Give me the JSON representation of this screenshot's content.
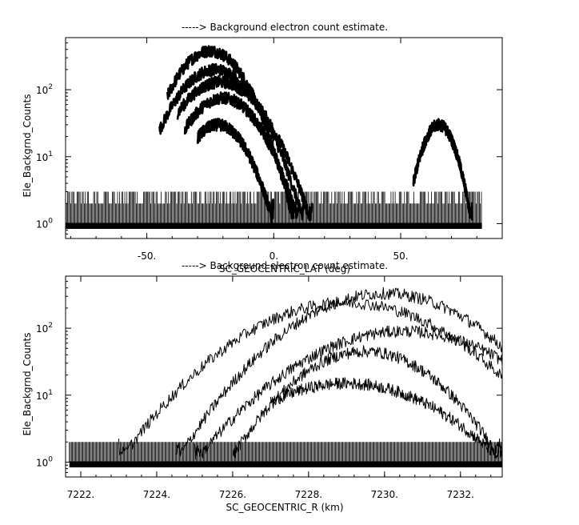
{
  "chart_data": [
    {
      "type": "line",
      "title": "-----> Background electron count estimate.",
      "xlabel": "SC_GEOCENTRIC_LAT (deg)",
      "ylabel": "Ele_Backgrnd_Counts",
      "xlim": [
        -82,
        90
      ],
      "ylim": [
        0.6,
        600
      ],
      "yscale": "log",
      "x_ticks": [
        {
          "value": -50,
          "label": "-50."
        },
        {
          "value": 0,
          "label": "0."
        },
        {
          "value": 50,
          "label": "50."
        }
      ],
      "y_ticks": [
        {
          "value": 1,
          "base": "10",
          "exp": "0"
        },
        {
          "value": 10,
          "base": "10",
          "exp": "1"
        },
        {
          "value": 100,
          "base": "10",
          "exp": "2"
        }
      ],
      "grid": false,
      "series": [
        {
          "peak_x": -25,
          "peak_y": 380,
          "x_range": [
            -42,
            8
          ]
        },
        {
          "peak_x": -23,
          "peak_y": 200,
          "x_range": [
            -45,
            12
          ]
        },
        {
          "peak_x": -21,
          "peak_y": 130,
          "x_range": [
            -38,
            15
          ]
        },
        {
          "peak_x": -20,
          "peak_y": 75,
          "x_range": [
            -35,
            10
          ]
        },
        {
          "peak_x": -22,
          "peak_y": 30,
          "x_range": [
            -30,
            0
          ]
        },
        {
          "peak_x": 65,
          "peak_y": 30,
          "x_range": [
            55,
            78
          ]
        }
      ],
      "noise_floor": {
        "x_range": [
          -82,
          82
        ],
        "values": [
          1,
          2,
          3
        ]
      }
    },
    {
      "type": "line",
      "title": "-----> Background electron count estimate.",
      "xlabel": "SC_GEOCENTRIC_R (km)",
      "ylabel": "Ele_Backgrnd_Counts",
      "xlim": [
        7221.6,
        7233.1
      ],
      "ylim": [
        0.6,
        600
      ],
      "yscale": "log",
      "x_ticks": [
        {
          "value": 7222,
          "label": "7222."
        },
        {
          "value": 7224,
          "label": "7224."
        },
        {
          "value": 7226,
          "label": "7226."
        },
        {
          "value": 7228,
          "label": "7228."
        },
        {
          "value": 7230,
          "label": "7230."
        },
        {
          "value": 7232,
          "label": "7232."
        }
      ],
      "y_ticks": [
        {
          "value": 1,
          "base": "10",
          "exp": "0"
        },
        {
          "value": 10,
          "base": "10",
          "exp": "1"
        },
        {
          "value": 100,
          "base": "10",
          "exp": "2"
        }
      ],
      "grid": false,
      "series": [
        {
          "peak_x": 7230.0,
          "peak_y": 330,
          "x_range": [
            7224.5,
            7233.1
          ]
        },
        {
          "peak_x": 7229.0,
          "peak_y": 240,
          "x_range": [
            7223.0,
            7233.1
          ]
        },
        {
          "peak_x": 7230.5,
          "peak_y": 90,
          "x_range": [
            7225.0,
            7233.1
          ]
        },
        {
          "peak_x": 7229.5,
          "peak_y": 45,
          "x_range": [
            7226.0,
            7233.1
          ]
        },
        {
          "peak_x": 7229.0,
          "peak_y": 15,
          "x_range": [
            7227.0,
            7233.1
          ]
        }
      ],
      "noise_floor": {
        "x_range": [
          7221.7,
          7233.1
        ],
        "values": [
          1,
          2
        ]
      }
    }
  ]
}
